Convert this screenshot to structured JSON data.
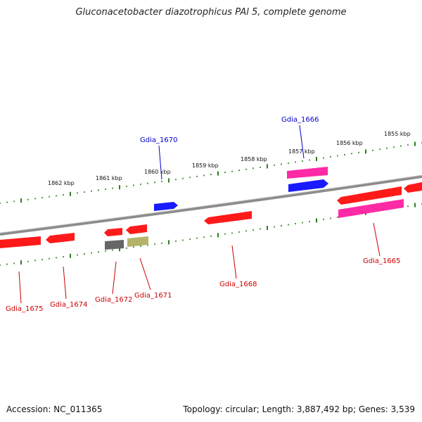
{
  "title": "Gluconacetobacter diazotrophicus PAl 5, complete genome",
  "accession": "Accession: NC_011365",
  "stats": "Topology: circular; Length: 3,887,492 bp; Genes: 3,539",
  "colors": {
    "backbone": "#8c8c8c",
    "tick": "#2e7d1f",
    "cds": "#ff1a1a",
    "trna": "#ff2aa5",
    "rrna": "#1a1aff",
    "other_gray": "#666666",
    "other_olive": "#b3b36b",
    "label_red": "#cc0000",
    "label_blue": "#0000cc"
  },
  "kbp_labels": [
    "1862 kbp",
    "1861 kbp",
    "1860 kbp",
    "1859 kbp",
    "1858 kbp",
    "1857 kbp",
    "1856 kbp",
    "1855 kbp"
  ],
  "gene_labels": {
    "g1675": "Gdia_1675",
    "g1674": "Gdia_1674",
    "g1672": "Gdia_1672",
    "g1671": "Gdia_1671",
    "g1670": "Gdia_1670",
    "g1668": "Gdia_1668",
    "g1666": "Gdia_1666",
    "g1665": "Gdia_1665"
  }
}
